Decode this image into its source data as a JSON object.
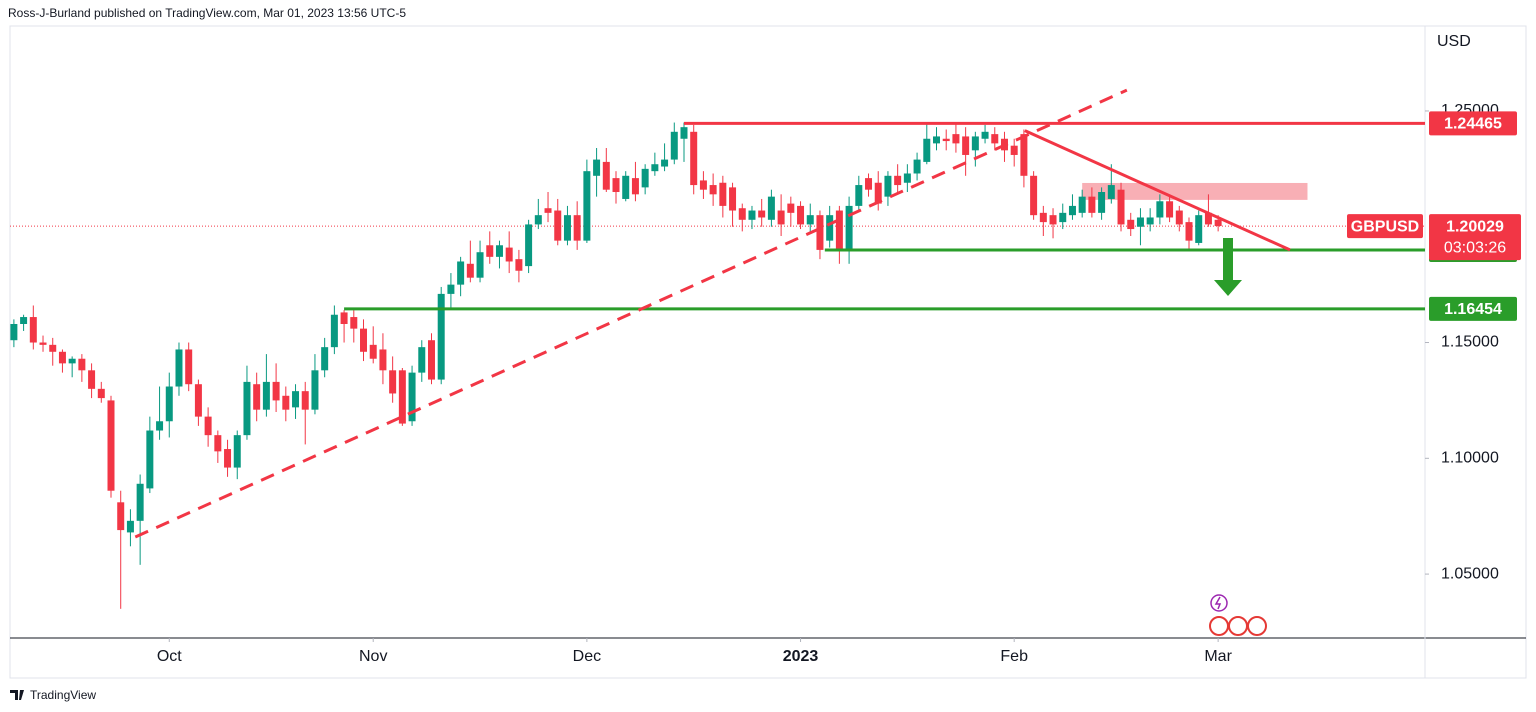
{
  "header": "Ross-J-Burland published on TradingView.com, Mar 01, 2023 13:56 UTC-5",
  "footer": "TradingView",
  "chart_data": {
    "type": "candlestick",
    "currency": "USD",
    "symbol": "GBPUSD",
    "last_price": 1.20029,
    "countdown": "03:03:26",
    "up_color": "#089981",
    "down_color": "#f23645",
    "ylim": [
      1.0224,
      1.2936
    ],
    "xlim": [
      -0.4,
      145.3
    ],
    "yticks": [
      {
        "value": 1.25,
        "label": "1.25000"
      },
      {
        "value": 1.15,
        "label": "1.15000"
      },
      {
        "value": 1.1,
        "label": "1.10000"
      },
      {
        "value": 1.05,
        "label": "1.05000"
      }
    ],
    "xticks": [
      {
        "value": 16,
        "label": "Oct"
      },
      {
        "value": 37,
        "label": "Nov"
      },
      {
        "value": 59,
        "label": "Dec"
      },
      {
        "value": 81,
        "label": "2023"
      },
      {
        "value": 103,
        "label": "Feb"
      },
      {
        "value": 124,
        "label": "Mar"
      }
    ],
    "candles": [
      [
        1.151,
        1.16,
        1.148,
        1.158
      ],
      [
        1.158,
        1.162,
        1.155,
        1.161
      ],
      [
        1.161,
        1.166,
        1.147,
        1.15
      ],
      [
        1.15,
        1.153,
        1.146,
        1.149
      ],
      [
        1.149,
        1.152,
        1.14,
        1.146
      ],
      [
        1.146,
        1.147,
        1.137,
        1.141
      ],
      [
        1.141,
        1.144,
        1.135,
        1.143
      ],
      [
        1.143,
        1.145,
        1.133,
        1.138
      ],
      [
        1.138,
        1.141,
        1.126,
        1.13
      ],
      [
        1.13,
        1.133,
        1.124,
        1.126
      ],
      [
        1.125,
        1.127,
        1.083,
        1.086
      ],
      [
        1.081,
        1.086,
        1.035,
        1.069
      ],
      [
        1.068,
        1.078,
        1.062,
        1.073
      ],
      [
        1.073,
        1.093,
        1.054,
        1.089
      ],
      [
        1.087,
        1.118,
        1.085,
        1.112
      ],
      [
        1.112,
        1.131,
        1.108,
        1.116
      ],
      [
        1.116,
        1.137,
        1.109,
        1.131
      ],
      [
        1.131,
        1.15,
        1.127,
        1.147
      ],
      [
        1.147,
        1.15,
        1.129,
        1.132
      ],
      [
        1.132,
        1.134,
        1.114,
        1.118
      ],
      [
        1.118,
        1.122,
        1.105,
        1.11
      ],
      [
        1.11,
        1.112,
        1.098,
        1.103
      ],
      [
        1.104,
        1.108,
        1.092,
        1.096
      ],
      [
        1.096,
        1.112,
        1.091,
        1.11
      ],
      [
        1.11,
        1.14,
        1.108,
        1.133
      ],
      [
        1.132,
        1.137,
        1.116,
        1.121
      ],
      [
        1.121,
        1.145,
        1.118,
        1.133
      ],
      [
        1.133,
        1.141,
        1.12,
        1.125
      ],
      [
        1.127,
        1.131,
        1.116,
        1.121
      ],
      [
        1.122,
        1.132,
        1.117,
        1.129
      ],
      [
        1.129,
        1.133,
        1.106,
        1.121
      ],
      [
        1.121,
        1.145,
        1.119,
        1.138
      ],
      [
        1.138,
        1.152,
        1.135,
        1.148
      ],
      [
        1.148,
        1.166,
        1.145,
        1.162
      ],
      [
        1.163,
        1.164,
        1.15,
        1.158
      ],
      [
        1.161,
        1.164,
        1.15,
        1.156
      ],
      [
        1.156,
        1.16,
        1.142,
        1.146
      ],
      [
        1.149,
        1.157,
        1.141,
        1.143
      ],
      [
        1.147,
        1.154,
        1.132,
        1.138
      ],
      [
        1.138,
        1.144,
        1.124,
        1.128
      ],
      [
        1.138,
        1.139,
        1.114,
        1.115
      ],
      [
        1.116,
        1.14,
        1.114,
        1.137
      ],
      [
        1.137,
        1.151,
        1.133,
        1.148
      ],
      [
        1.151,
        1.154,
        1.132,
        1.134
      ],
      [
        1.134,
        1.174,
        1.132,
        1.171
      ],
      [
        1.171,
        1.18,
        1.165,
        1.175
      ],
      [
        1.175,
        1.187,
        1.17,
        1.185
      ],
      [
        1.184,
        1.194,
        1.176,
        1.178
      ],
      [
        1.178,
        1.194,
        1.176,
        1.189
      ],
      [
        1.192,
        1.198,
        1.184,
        1.187
      ],
      [
        1.187,
        1.194,
        1.182,
        1.192
      ],
      [
        1.191,
        1.198,
        1.18,
        1.185
      ],
      [
        1.186,
        1.19,
        1.176,
        1.181
      ],
      [
        1.183,
        1.203,
        1.18,
        1.201
      ],
      [
        1.201,
        1.212,
        1.199,
        1.205
      ],
      [
        1.208,
        1.215,
        1.202,
        1.206
      ],
      [
        1.207,
        1.212,
        1.192,
        1.194
      ],
      [
        1.194,
        1.209,
        1.192,
        1.205
      ],
      [
        1.205,
        1.211,
        1.19,
        1.194
      ],
      [
        1.194,
        1.229,
        1.193,
        1.224
      ],
      [
        1.222,
        1.234,
        1.213,
        1.229
      ],
      [
        1.228,
        1.234,
        1.215,
        1.216
      ],
      [
        1.221,
        1.224,
        1.21,
        1.215
      ],
      [
        1.212,
        1.224,
        1.211,
        1.222
      ],
      [
        1.221,
        1.228,
        1.211,
        1.214
      ],
      [
        1.217,
        1.227,
        1.214,
        1.225
      ],
      [
        1.224,
        1.232,
        1.222,
        1.227
      ],
      [
        1.226,
        1.236,
        1.224,
        1.229
      ],
      [
        1.229,
        1.245,
        1.227,
        1.241
      ],
      [
        1.238,
        1.245,
        1.228,
        1.243
      ],
      [
        1.241,
        1.244,
        1.214,
        1.218
      ],
      [
        1.22,
        1.224,
        1.212,
        1.216
      ],
      [
        1.218,
        1.223,
        1.209,
        1.214
      ],
      [
        1.219,
        1.222,
        1.204,
        1.209
      ],
      [
        1.217,
        1.219,
        1.2,
        1.207
      ],
      [
        1.208,
        1.21,
        1.198,
        1.203
      ],
      [
        1.203,
        1.209,
        1.199,
        1.207
      ],
      [
        1.207,
        1.212,
        1.2,
        1.204
      ],
      [
        1.203,
        1.216,
        1.2,
        1.213
      ],
      [
        1.207,
        1.214,
        1.196,
        1.201
      ],
      [
        1.21,
        1.213,
        1.2,
        1.206
      ],
      [
        1.209,
        1.211,
        1.199,
        1.201
      ],
      [
        1.201,
        1.21,
        1.197,
        1.205
      ],
      [
        1.205,
        1.207,
        1.186,
        1.19
      ],
      [
        1.194,
        1.209,
        1.191,
        1.205
      ],
      [
        1.207,
        1.209,
        1.184,
        1.19
      ],
      [
        1.19,
        1.213,
        1.184,
        1.209
      ],
      [
        1.209,
        1.222,
        1.207,
        1.218
      ],
      [
        1.221,
        1.223,
        1.213,
        1.216
      ],
      [
        1.219,
        1.224,
        1.207,
        1.21
      ],
      [
        1.213,
        1.224,
        1.209,
        1.222
      ],
      [
        1.222,
        1.227,
        1.215,
        1.218
      ],
      [
        1.219,
        1.227,
        1.215,
        1.223
      ],
      [
        1.223,
        1.232,
        1.22,
        1.229
      ],
      [
        1.228,
        1.245,
        1.227,
        1.238
      ],
      [
        1.236,
        1.243,
        1.233,
        1.239
      ],
      [
        1.238,
        1.242,
        1.233,
        1.237
      ],
      [
        1.24,
        1.245,
        1.232,
        1.236
      ],
      [
        1.239,
        1.243,
        1.222,
        1.231
      ],
      [
        1.233,
        1.241,
        1.226,
        1.239
      ],
      [
        1.238,
        1.244,
        1.236,
        1.241
      ],
      [
        1.24,
        1.243,
        1.233,
        1.236
      ],
      [
        1.238,
        1.241,
        1.228,
        1.233
      ],
      [
        1.235,
        1.238,
        1.226,
        1.231
      ],
      [
        1.24,
        1.242,
        1.217,
        1.222
      ],
      [
        1.222,
        1.224,
        1.203,
        1.205
      ],
      [
        1.206,
        1.209,
        1.196,
        1.202
      ],
      [
        1.205,
        1.208,
        1.195,
        1.201
      ],
      [
        1.202,
        1.21,
        1.199,
        1.206
      ],
      [
        1.205,
        1.214,
        1.203,
        1.209
      ],
      [
        1.206,
        1.216,
        1.204,
        1.213
      ],
      [
        1.213,
        1.217,
        1.204,
        1.206
      ],
      [
        1.206,
        1.217,
        1.203,
        1.215
      ],
      [
        1.212,
        1.227,
        1.21,
        1.218
      ],
      [
        1.216,
        1.219,
        1.198,
        1.201
      ],
      [
        1.203,
        1.206,
        1.196,
        1.199
      ],
      [
        1.2,
        1.208,
        1.192,
        1.204
      ],
      [
        1.201,
        1.208,
        1.198,
        1.204
      ],
      [
        1.204,
        1.214,
        1.201,
        1.211
      ],
      [
        1.211,
        1.213,
        1.202,
        1.204
      ],
      [
        1.207,
        1.209,
        1.198,
        1.201
      ],
      [
        1.202,
        1.204,
        1.19,
        1.194
      ],
      [
        1.193,
        1.207,
        1.192,
        1.205
      ],
      [
        1.206,
        1.214,
        1.2,
        1.201
      ],
      [
        1.203,
        1.205,
        1.198,
        1.2003
      ]
    ],
    "levels": [
      {
        "value": 1.24465,
        "color": "#f23645",
        "start": 69
      },
      {
        "value": 1.18997,
        "color": "#2a9d2a",
        "start": 83.5
      },
      {
        "value": 1.16454,
        "color": "#2a9d2a",
        "start": 34
      }
    ],
    "trendlines": [
      {
        "points": [
          [
            12.5,
            1.066
          ],
          [
            114.6,
            1.259
          ]
        ],
        "color": "#f23645",
        "dashed": true
      },
      {
        "points": [
          [
            104.1,
            1.2415
          ],
          [
            131.4,
            1.19
          ]
        ],
        "color": "#f23645",
        "dashed": false
      }
    ],
    "zone": {
      "x": [
        110,
        133.2
      ],
      "y": [
        1.2116,
        1.2189
      ],
      "color": "#f7a1a8"
    }
  }
}
